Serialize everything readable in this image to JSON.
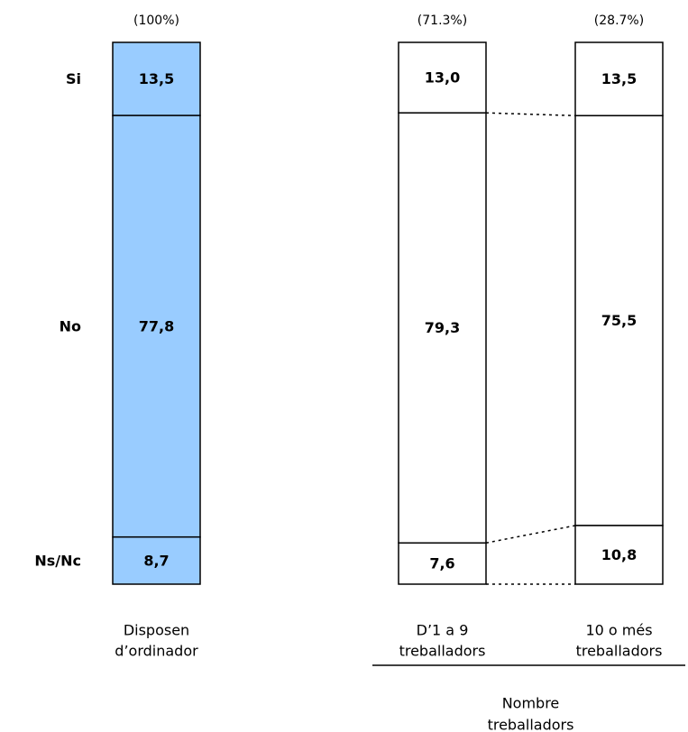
{
  "chart_data": {
    "type": "bar",
    "stacked": true,
    "normalized_percent": true,
    "categories": [
      "Si",
      "No",
      "Ns/Nc"
    ],
    "colors": {
      "total_fill": "#99ccff",
      "group_fill": "#ffffff",
      "stroke": "#000000"
    },
    "bars": [
      {
        "label_lines": [
          "Disposen",
          "d’ordinador"
        ],
        "share": "(100%)",
        "values": [
          13.5,
          77.8,
          8.7
        ],
        "value_labels": [
          "13,5",
          "77,8",
          "8,7"
        ]
      },
      {
        "label_lines": [
          "D’1 a 9",
          "treballadors"
        ],
        "share": "(71.3%)",
        "values": [
          13.0,
          79.3,
          7.6
        ],
        "value_labels": [
          "13,0",
          "79,3",
          "7,6"
        ]
      },
      {
        "label_lines": [
          "10 o més",
          "treballadors"
        ],
        "share": "(28.7%)",
        "values": [
          13.5,
          75.5,
          10.8
        ],
        "value_labels": [
          "13,5",
          "75,5",
          "10,8"
        ]
      }
    ],
    "group_label_lines": [
      "Nombre",
      "treballadors"
    ]
  }
}
